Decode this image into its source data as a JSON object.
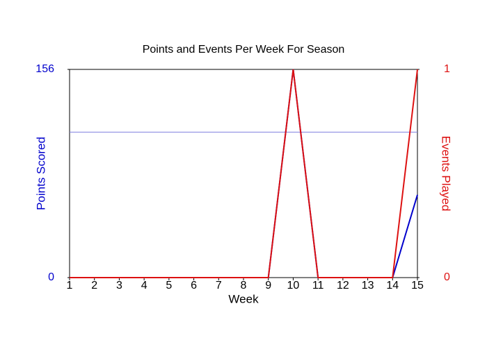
{
  "chart_data": {
    "type": "line",
    "title": "Points and Events Per Week For Season",
    "x_label": "Week",
    "y_label": "Points Scored",
    "y2_label": "Events Played",
    "x": [
      1,
      2,
      3,
      4,
      5,
      6,
      7,
      8,
      9,
      10,
      11,
      12,
      13,
      14,
      15
    ],
    "xlim": [
      1,
      15
    ],
    "xticks": [
      1,
      2,
      3,
      4,
      5,
      6,
      7,
      8,
      9,
      10,
      11,
      12,
      13,
      14,
      15
    ],
    "ylim": [
      0,
      156
    ],
    "yticks": [
      0,
      156
    ],
    "y2lim": [
      0,
      1
    ],
    "y2ticks": [
      0,
      1
    ],
    "reference_line": {
      "value": 109,
      "color": "#8080e0"
    },
    "series": [
      {
        "name": "Points Scored",
        "color": "#0000cc",
        "values": [
          0,
          0,
          0,
          0,
          0,
          0,
          0,
          0,
          0,
          156,
          0,
          0,
          0,
          0,
          62
        ]
      },
      {
        "name": "Events Played",
        "color": "#dd1111",
        "axis": "y2",
        "values": [
          0,
          0,
          0,
          0,
          0,
          0,
          0,
          0,
          0,
          1,
          0,
          0,
          0,
          0,
          1
        ]
      }
    ]
  }
}
